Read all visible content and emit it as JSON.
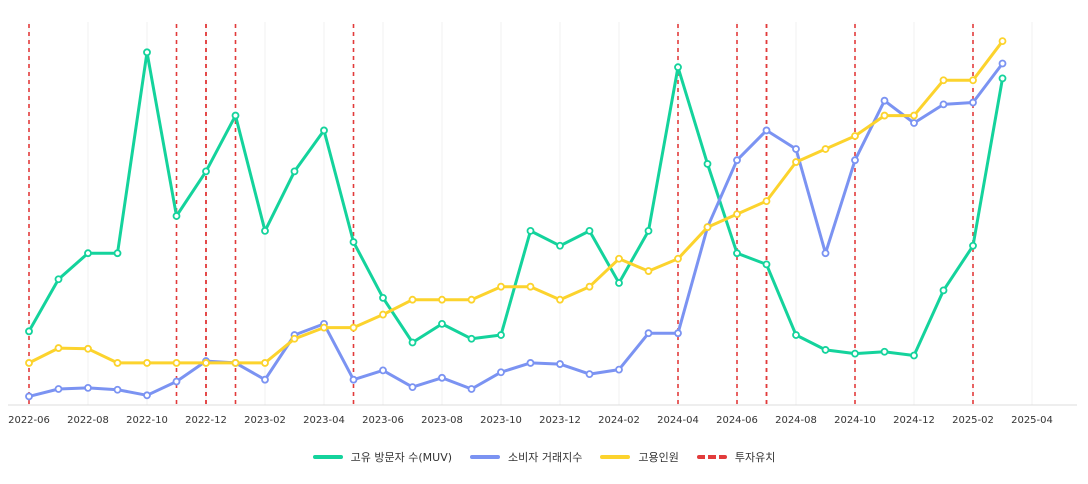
{
  "chart_data": {
    "type": "line",
    "title": "",
    "xlabel": "",
    "ylabel": "",
    "grid": true,
    "legend_position": "bottom-center",
    "x_ticks": [
      "2022-06",
      "2022-08",
      "2022-10",
      "2022-12",
      "2023-02",
      "2023-04",
      "2023-06",
      "2023-08",
      "2023-10",
      "2023-12",
      "2024-02",
      "2024-04",
      "2024-06",
      "2024-08",
      "2024-10",
      "2024-12",
      "2025-02",
      "2025-04"
    ],
    "x": [
      "2022-06",
      "2022-07",
      "2022-08",
      "2022-09",
      "2022-10",
      "2022-11",
      "2022-12",
      "2023-01",
      "2023-02",
      "2023-03",
      "2023-04",
      "2023-05",
      "2023-06",
      "2023-07",
      "2023-08",
      "2023-09",
      "2023-10",
      "2023-11",
      "2023-12",
      "2024-01",
      "2024-02",
      "2024-03",
      "2024-04",
      "2024-05",
      "2024-06",
      "2024-07",
      "2024-08",
      "2024-09",
      "2024-10",
      "2024-11",
      "2024-12",
      "2025-01",
      "2025-02",
      "2025-03"
    ],
    "ylim": [
      0,
      100
    ],
    "series": [
      {
        "name": "고유 방문자 수(MUV)",
        "color": "#14d39c",
        "values": [
          19,
          33,
          40,
          40,
          94,
          50,
          62,
          77,
          46,
          62,
          73,
          43,
          28,
          16,
          21,
          17,
          18,
          46,
          42,
          46,
          32,
          46,
          90,
          64,
          40,
          37,
          18,
          14,
          13,
          13.5,
          12.5,
          30,
          42,
          87
        ]
      },
      {
        "name": "소비자 거래지수",
        "color": "#7b93f2",
        "values": [
          1.5,
          3.5,
          3.8,
          3.3,
          1.8,
          5.5,
          11,
          10.5,
          6,
          18,
          21,
          6,
          8.5,
          4,
          6.5,
          3.5,
          8,
          10.5,
          10.2,
          7.5,
          8.7,
          18.5,
          18.5,
          47,
          65,
          73,
          68,
          40,
          65,
          81,
          75,
          80,
          80.5,
          91
        ]
      },
      {
        "name": "고용인원",
        "color": "#fcd32d",
        "values": [
          10.5,
          14.5,
          14.3,
          10.5,
          10.5,
          10.5,
          10.5,
          10.5,
          10.5,
          17,
          20,
          20,
          23.5,
          27.5,
          27.5,
          27.5,
          31,
          31,
          27.5,
          31,
          38.5,
          35.2,
          38.5,
          47,
          50.5,
          54,
          64.5,
          68,
          71.5,
          77,
          77,
          86.5,
          86.5,
          97
        ]
      }
    ],
    "investment_markers": {
      "name": "투자유치",
      "color": "#e23b3b",
      "dates": [
        "2022-06",
        "2022-11",
        "2022-12",
        "2022-12",
        "2023-01",
        "2023-05",
        "2024-04",
        "2024-06",
        "2024-07",
        "2024-07",
        "2024-10",
        "2025-02"
      ]
    },
    "legend": [
      "고유 방문자 수(MUV)",
      "소비자 거래지수",
      "고용인원",
      "투자유치"
    ]
  }
}
